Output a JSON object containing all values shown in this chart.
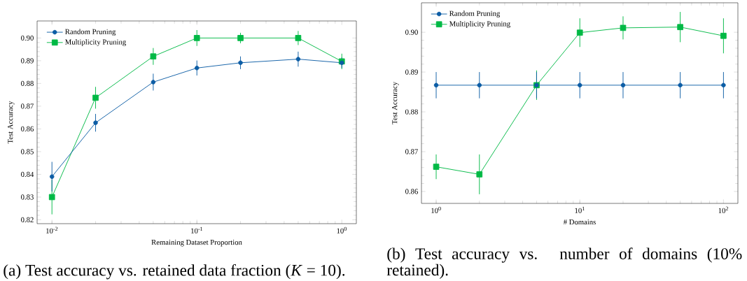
{
  "chart_data": [
    {
      "type": "line",
      "xlabel": "Remaining Dataset Proportion",
      "ylabel": "Test Accuracy",
      "log": "x",
      "legend": "top left",
      "x": [
        0.01,
        0.02,
        0.05,
        0.1,
        0.2,
        0.5,
        1.0
      ],
      "series": [
        {
          "name": "Random Pruning",
          "color": "#0c5da5",
          "marker": "circle",
          "values": [
            0.839,
            0.8627,
            0.8806,
            0.8868,
            0.8891,
            0.8907,
            0.8891
          ],
          "errors": [
            0.0065,
            0.0039,
            0.0037,
            0.0033,
            0.0028,
            0.0033,
            0.0023
          ]
        },
        {
          "name": "Multiplicity Pruning",
          "color": "#00b945",
          "marker": "square",
          "values": [
            0.83,
            0.8737,
            0.8919,
            0.9,
            0.9,
            0.9,
            0.8897
          ],
          "errors": [
            0.0076,
            0.0048,
            0.0037,
            0.0035,
            0.0023,
            0.0031,
            0.0034
          ]
        }
      ],
      "xlim": [
        0.0079,
        1.26
      ],
      "ylim": [
        0.8183,
        0.9075
      ],
      "xticks": [
        {
          "value": 0.01,
          "label": "10$^{-2}$"
        },
        {
          "value": 0.1,
          "label": "10$^{-1}$"
        },
        {
          "value": 1,
          "label": "10$^{0}$"
        }
      ],
      "yticks": [
        0.82,
        0.83,
        0.84,
        0.85,
        0.86,
        0.87,
        0.88,
        0.89,
        {
          "value": 0.9,
          "label": "0.90"
        }
      ],
      "annotations": [
        "(a) Test accuracy vs. retained data fraction (*K* = 10)."
      ]
    },
    {
      "type": "line",
      "xlabel": "# Domains",
      "ylabel": "Test Accuracy",
      "log": "x",
      "legend": "top left",
      "x": [
        1,
        2,
        5,
        10,
        20,
        50,
        100
      ],
      "series": [
        {
          "name": "Random Pruning",
          "color": "#0c5da5",
          "marker": "circle",
          "values": [
            0.8867,
            0.8867,
            0.8867,
            0.8867,
            0.8867,
            0.8867,
            0.8867
          ],
          "errors": [
            0.0033,
            0.0033,
            0.0033,
            0.0033,
            0.0033,
            0.0033,
            0.0033
          ]
        },
        {
          "name": "Multiplicity Pruning",
          "color": "#00b945",
          "marker": "square",
          "values": [
            0.8662,
            0.8643,
            0.8867,
            0.8999,
            0.9011,
            0.9013,
            0.8991
          ],
          "errors": [
            0.0031,
            0.005,
            0.0037,
            0.0036,
            0.0029,
            0.0038,
            0.0044
          ]
        }
      ],
      "xlim": [
        0.79,
        126
      ],
      "ylim": [
        0.857,
        0.9074
      ],
      "xticks": [
        {
          "value": 1,
          "label": "10$^{0}$"
        },
        {
          "value": 10,
          "label": "10$^{1}$"
        },
        {
          "value": 100,
          "label": "10$^{2}$"
        }
      ],
      "yticks": [
        0.86,
        0.87,
        0.88,
        0.89,
        {
          "value": 0.9,
          "label": "0.90"
        }
      ],
      "annotations": [
        "(b) Test accuracy vs. number of domains (10% retained)."
      ]
    }
  ]
}
